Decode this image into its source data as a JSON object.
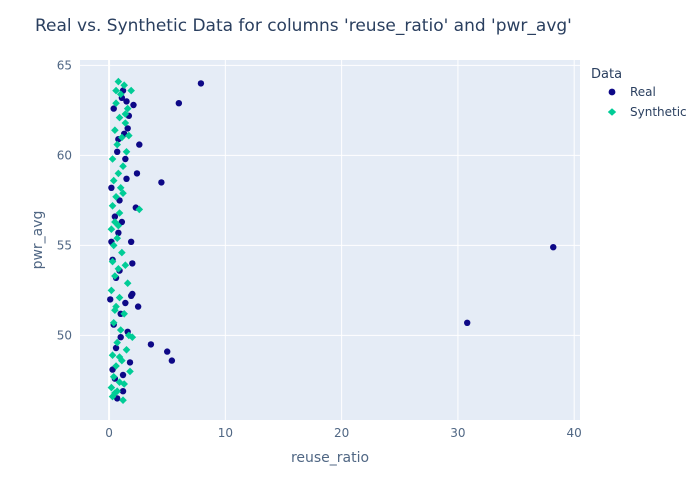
{
  "chart_data": {
    "type": "scatter",
    "title": "Real vs. Synthetic Data for columns 'reuse_ratio' and 'pwr_avg'",
    "xlabel": "reuse_ratio",
    "ylabel": "pwr_avg",
    "xlim": [
      -2.5,
      40.5
    ],
    "ylim": [
      45.3,
      65.3
    ],
    "xticks": [
      0,
      10,
      20,
      30,
      40
    ],
    "yticks": [
      50,
      55,
      60,
      65
    ],
    "grid": true,
    "legend": {
      "title": "Data",
      "position": "top-right"
    },
    "colors": {
      "plot_bg": "#e5ecf6",
      "real": "#0d0887",
      "synthetic": "#00cc96"
    },
    "series": [
      {
        "name": "Real",
        "marker": "circle",
        "color": "#0d0887",
        "points": [
          [
            7.9,
            64.0
          ],
          [
            6.0,
            62.9
          ],
          [
            4.5,
            58.5
          ],
          [
            38.2,
            54.9
          ],
          [
            30.8,
            50.7
          ],
          [
            3.6,
            49.5
          ],
          [
            5.0,
            49.1
          ],
          [
            5.4,
            48.6
          ],
          [
            2.6,
            60.6
          ],
          [
            2.4,
            59.0
          ],
          [
            2.3,
            57.1
          ],
          [
            1.9,
            55.2
          ],
          [
            2.0,
            54.0
          ],
          [
            2.5,
            51.6
          ],
          [
            2.0,
            52.3
          ],
          [
            1.6,
            61.5
          ],
          [
            1.2,
            63.6
          ],
          [
            1.1,
            63.2
          ],
          [
            2.1,
            62.8
          ],
          [
            0.3,
            54.2
          ],
          [
            0.2,
            55.2
          ],
          [
            0.8,
            55.7
          ],
          [
            0.1,
            52.0
          ],
          [
            0.6,
            53.2
          ],
          [
            1.4,
            51.8
          ],
          [
            0.4,
            50.6
          ],
          [
            1.0,
            49.9
          ],
          [
            0.5,
            47.6
          ],
          [
            1.2,
            46.9
          ],
          [
            0.7,
            46.5
          ],
          [
            1.8,
            48.5
          ],
          [
            1.1,
            56.3
          ],
          [
            0.9,
            57.5
          ],
          [
            1.5,
            58.7
          ],
          [
            0.7,
            60.2
          ],
          [
            1.3,
            61.2
          ],
          [
            0.4,
            62.6
          ],
          [
            1.7,
            62.2
          ],
          [
            0.9,
            53.6
          ],
          [
            1.9,
            52.2
          ],
          [
            0.5,
            56.6
          ],
          [
            1.4,
            59.8
          ],
          [
            0.2,
            58.2
          ],
          [
            1.0,
            51.2
          ],
          [
            0.6,
            49.3
          ],
          [
            1.6,
            50.2
          ],
          [
            0.3,
            48.1
          ],
          [
            1.2,
            47.8
          ],
          [
            0.8,
            60.9
          ],
          [
            1.5,
            63.0
          ]
        ]
      },
      {
        "name": "Synthetic",
        "marker": "diamond",
        "color": "#00cc96",
        "points": [
          [
            0.8,
            64.1
          ],
          [
            1.3,
            63.9
          ],
          [
            1.9,
            63.6
          ],
          [
            1.0,
            63.4
          ],
          [
            0.6,
            62.9
          ],
          [
            1.6,
            62.6
          ],
          [
            0.9,
            62.1
          ],
          [
            1.4,
            61.8
          ],
          [
            0.5,
            61.4
          ],
          [
            1.1,
            61.0
          ],
          [
            0.7,
            60.6
          ],
          [
            1.5,
            60.2
          ],
          [
            0.3,
            59.8
          ],
          [
            1.2,
            59.4
          ],
          [
            0.8,
            59.0
          ],
          [
            0.4,
            58.6
          ],
          [
            1.0,
            58.2
          ],
          [
            0.6,
            57.7
          ],
          [
            2.6,
            57.0
          ],
          [
            0.3,
            57.2
          ],
          [
            0.9,
            56.8
          ],
          [
            0.5,
            56.3
          ],
          [
            0.2,
            55.9
          ],
          [
            0.7,
            55.4
          ],
          [
            0.4,
            55.0
          ],
          [
            1.1,
            54.6
          ],
          [
            0.3,
            54.1
          ],
          [
            0.8,
            53.7
          ],
          [
            0.5,
            53.3
          ],
          [
            1.6,
            52.9
          ],
          [
            0.2,
            52.5
          ],
          [
            0.9,
            52.1
          ],
          [
            0.6,
            51.6
          ],
          [
            1.3,
            51.2
          ],
          [
            0.4,
            50.7
          ],
          [
            1.0,
            50.3
          ],
          [
            2.0,
            49.9
          ],
          [
            0.7,
            49.6
          ],
          [
            1.5,
            49.2
          ],
          [
            0.3,
            48.9
          ],
          [
            1.1,
            48.6
          ],
          [
            0.6,
            48.3
          ],
          [
            1.8,
            48.0
          ],
          [
            0.4,
            47.7
          ],
          [
            0.9,
            47.4
          ],
          [
            0.2,
            47.1
          ],
          [
            0.7,
            46.9
          ],
          [
            0.3,
            46.6
          ],
          [
            1.2,
            46.4
          ],
          [
            1.4,
            62.3
          ],
          [
            0.6,
            63.6
          ],
          [
            1.7,
            61.1
          ],
          [
            1.2,
            57.9
          ],
          [
            0.8,
            56.1
          ],
          [
            1.4,
            53.9
          ],
          [
            0.5,
            51.4
          ],
          [
            1.7,
            50.0
          ],
          [
            0.9,
            48.8
          ],
          [
            1.3,
            47.3
          ],
          [
            0.5,
            46.8
          ]
        ]
      }
    ]
  }
}
